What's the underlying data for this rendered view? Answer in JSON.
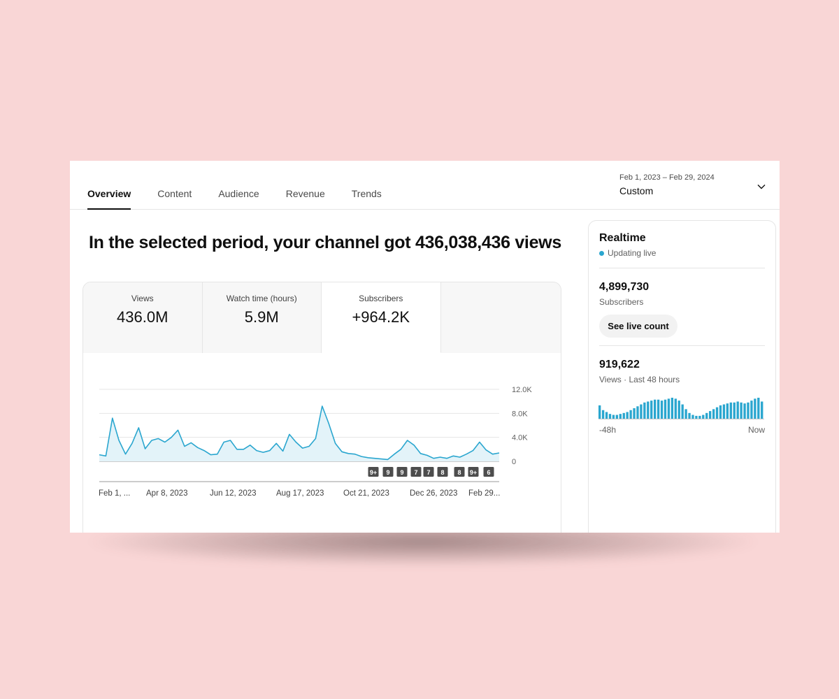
{
  "tabs": [
    {
      "label": "Overview",
      "active": true
    },
    {
      "label": "Content",
      "active": false
    },
    {
      "label": "Audience",
      "active": false
    },
    {
      "label": "Revenue",
      "active": false
    },
    {
      "label": "Trends",
      "active": false
    }
  ],
  "date_range": {
    "range": "Feb 1, 2023 – Feb 29, 2024",
    "preset": "Custom",
    "icon": "chevron-down-icon"
  },
  "headline": "In the selected period, your channel got 436,038,436 views",
  "metrics": [
    {
      "label": "Views",
      "value": "436.0M"
    },
    {
      "label": "Watch time (hours)",
      "value": "5.9M"
    },
    {
      "label": "Subscribers",
      "value": "+964.2K",
      "selected": true
    }
  ],
  "colors": {
    "line": "#2aa6cf",
    "area": "#e3f3f9",
    "grid": "#e5e5e5",
    "badge": "#4d4d4d"
  },
  "chart_data": {
    "type": "area",
    "ylim": [
      0,
      12000
    ],
    "y_ticks": [
      "12.0K",
      "8.0K",
      "4.0K",
      "0"
    ],
    "x_ticks": [
      "Feb 1, ...",
      "Apr 8, 2023",
      "Jun 12, 2023",
      "Aug 17, 2023",
      "Oct 21, 2023",
      "Dec 26, 2023",
      "Feb 29..."
    ],
    "grid": true,
    "annotation_badges": [
      "9+",
      "9",
      "9",
      "7",
      "7",
      "8",
      "8",
      "9+",
      "6"
    ],
    "series": [
      {
        "x_start": "Feb 1, 2023",
        "x_end": "Feb 29, 2024",
        "values": [
          1100,
          900,
          7200,
          3500,
          1200,
          3000,
          5600,
          2100,
          3500,
          3800,
          3200,
          4000,
          5200,
          2500,
          3100,
          2300,
          1800,
          1100,
          1200,
          3200,
          3500,
          2000,
          2000,
          2700,
          1800,
          1500,
          1800,
          3000,
          1700,
          4500,
          3200,
          2200,
          2500,
          3800,
          9200,
          6300,
          3000,
          1600,
          1300,
          1200,
          800,
          600,
          500,
          400,
          300,
          1200,
          2000,
          3500,
          2700,
          1300,
          1000,
          500,
          700,
          500,
          900,
          700,
          1200,
          1800,
          3200,
          1900,
          1200,
          1400
        ]
      }
    ]
  },
  "realtime": {
    "title": "Realtime",
    "status": "Updating live",
    "subscribers_value": "4,899,730",
    "subscribers_label": "Subscribers",
    "live_button": "See live count",
    "views_value": "919,622",
    "views_label": "Views · Last 48 hours",
    "axis_start": "-48h",
    "axis_end": "Now",
    "hourly_views": [
      14,
      9,
      7,
      5,
      4,
      4,
      5,
      6,
      7,
      9,
      11,
      13,
      15,
      17,
      18,
      19,
      20,
      20,
      19,
      20,
      21,
      22,
      21,
      19,
      15,
      10,
      6,
      4,
      3,
      3,
      4,
      6,
      8,
      10,
      12,
      14,
      15,
      16,
      17,
      17,
      18,
      17,
      16,
      17,
      19,
      21,
      22,
      18
    ]
  }
}
